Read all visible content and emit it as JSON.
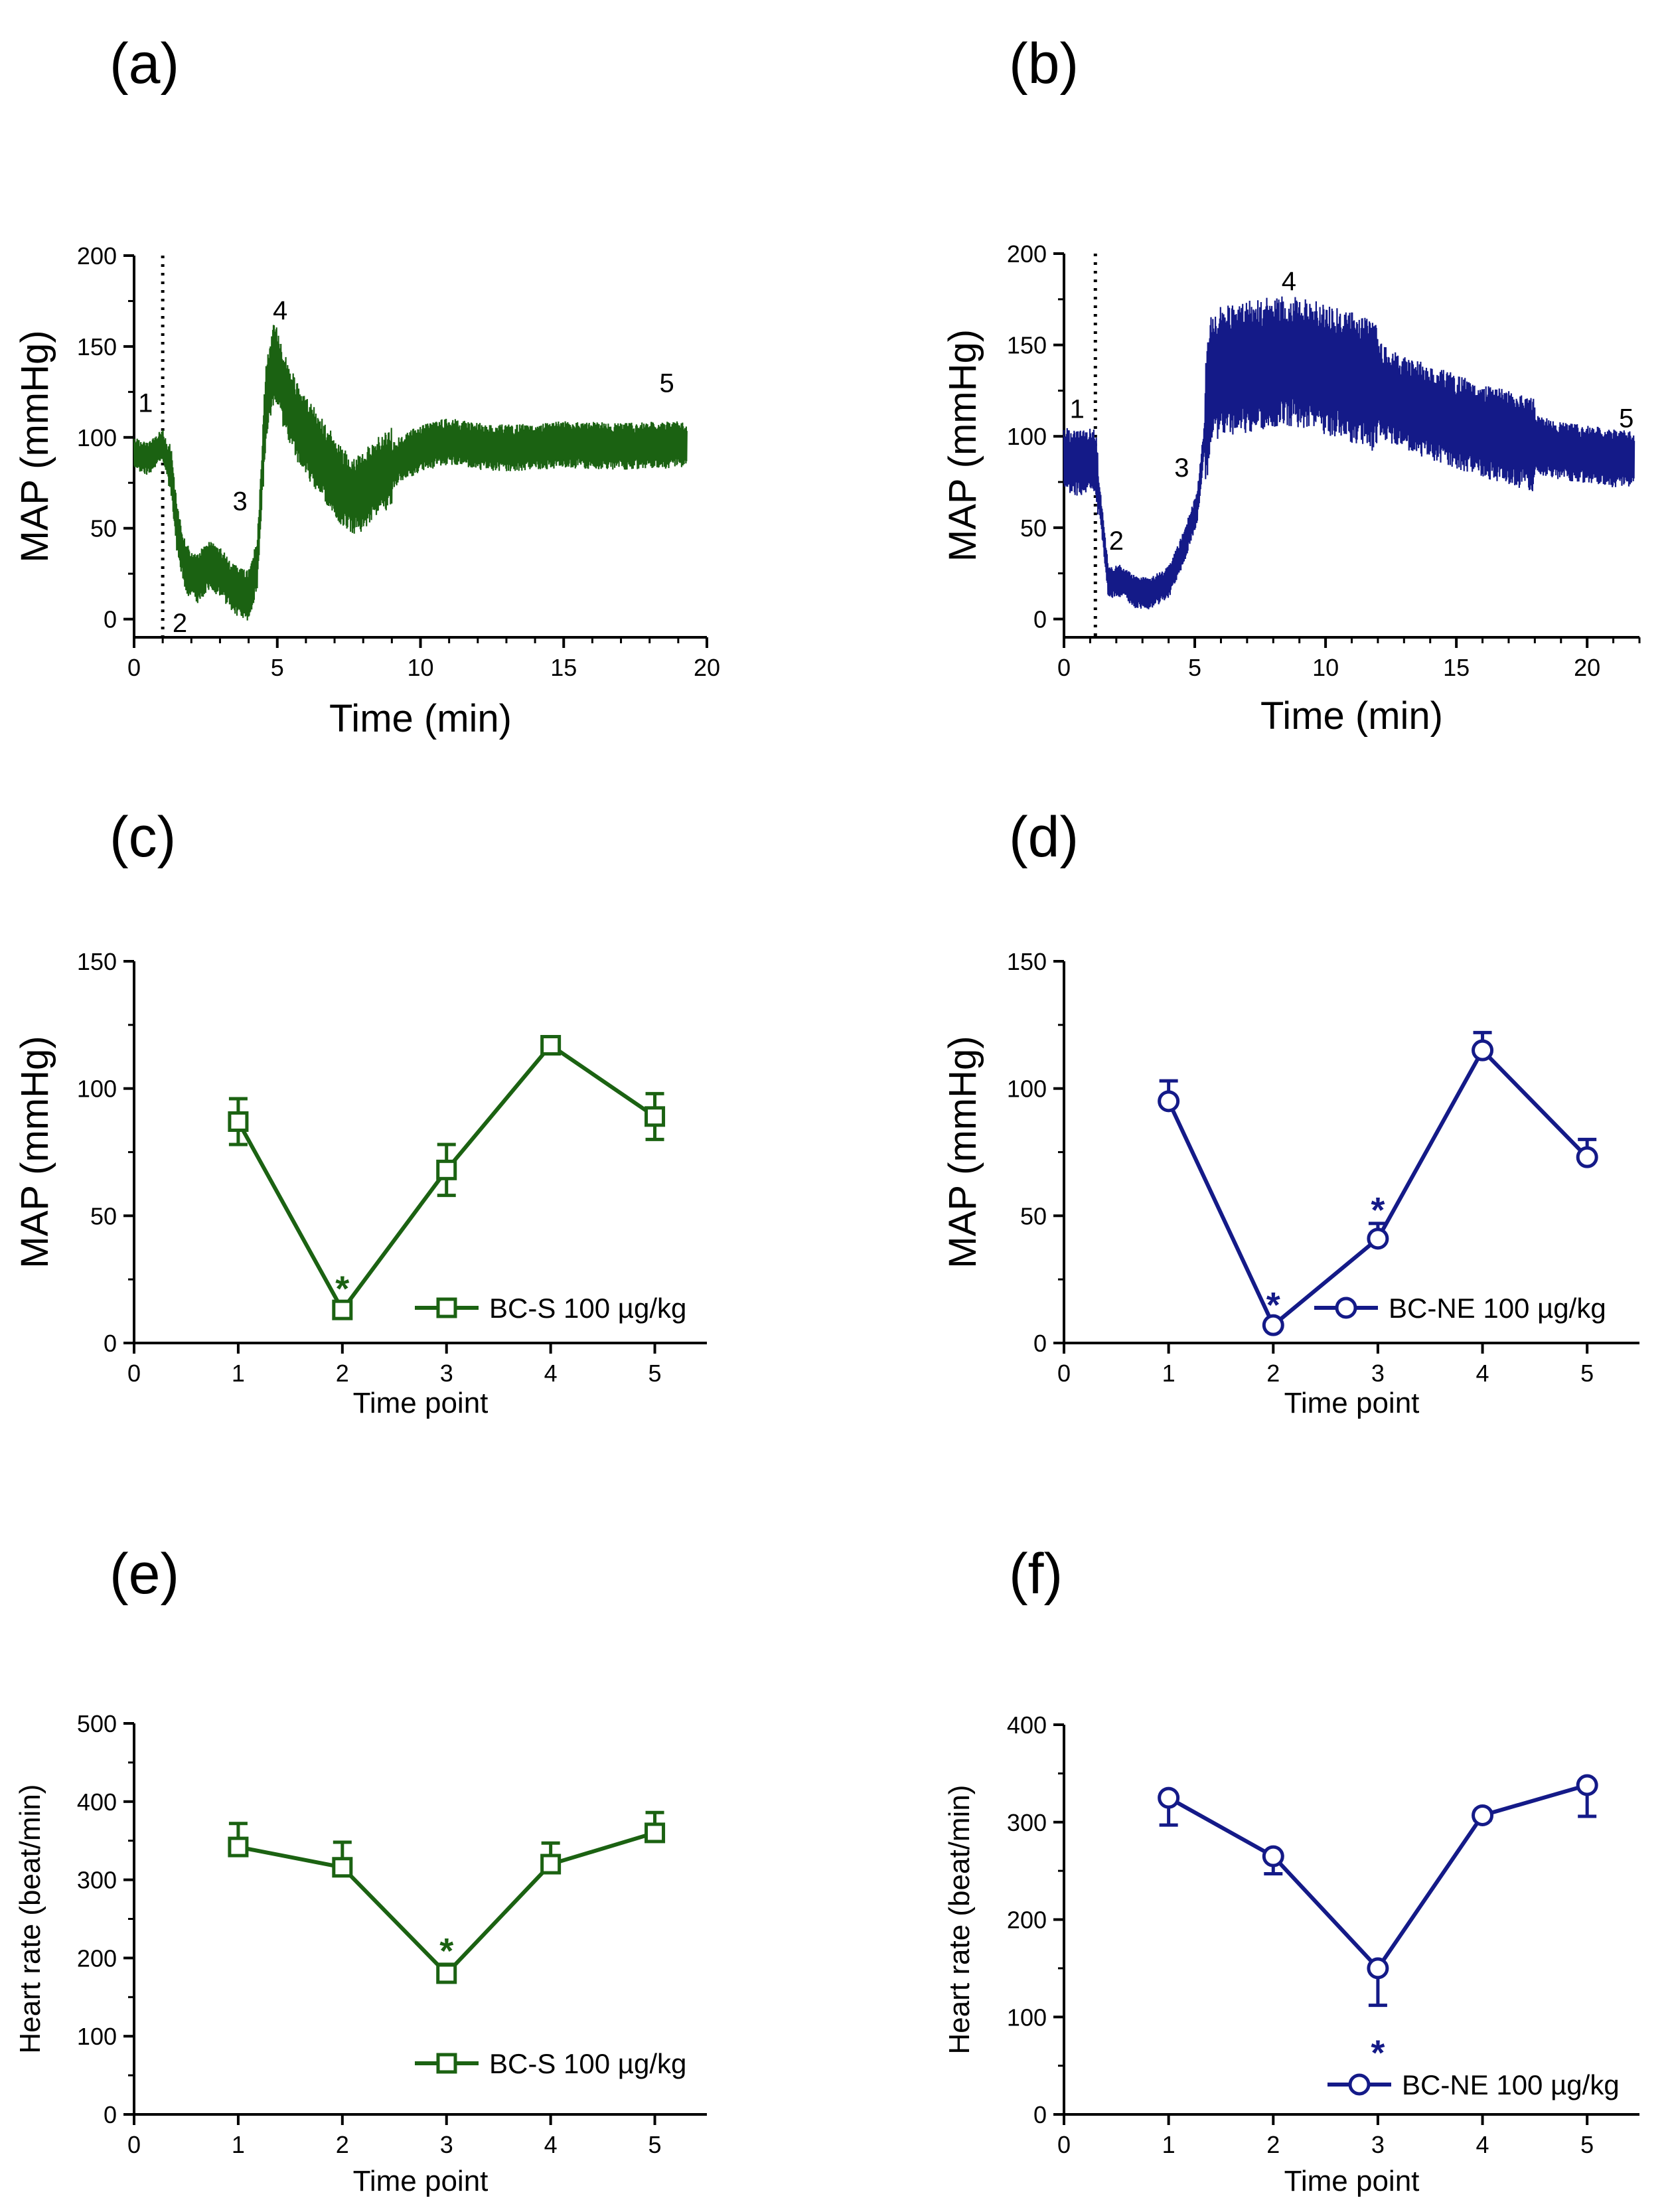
{
  "colors": {
    "green": "#1b6212",
    "blue": "#141a88",
    "axis": "#000000"
  },
  "chart_data": [
    {
      "id": "a",
      "panel_label": "(a)",
      "type": "line",
      "color": "green",
      "title": "",
      "xlabel": "Time (min)",
      "ylabel": "MAP (mmHg)",
      "xlim": [
        0,
        20
      ],
      "ylim": [
        -10,
        200
      ],
      "xticks": [
        "0",
        "5",
        "10",
        "15",
        "20"
      ],
      "yticks": [
        "0",
        "50",
        "100",
        "150",
        "200"
      ],
      "injection_line_x": 1.0,
      "trace": [
        [
          0,
          91
        ],
        [
          0.5,
          88
        ],
        [
          1.0,
          96
        ],
        [
          1.3,
          80
        ],
        [
          1.5,
          50
        ],
        [
          1.8,
          28
        ],
        [
          2.2,
          22
        ],
        [
          2.6,
          30
        ],
        [
          3.0,
          26
        ],
        [
          3.5,
          16
        ],
        [
          4.0,
          13
        ],
        [
          4.3,
          30
        ],
        [
          4.6,
          118
        ],
        [
          4.9,
          143
        ],
        [
          5.3,
          122
        ],
        [
          5.8,
          105
        ],
        [
          6.5,
          90
        ],
        [
          7.3,
          72
        ],
        [
          7.8,
          68
        ],
        [
          8.5,
          78
        ],
        [
          9.3,
          88
        ],
        [
          10.0,
          94
        ],
        [
          11.0,
          98
        ],
        [
          12.0,
          95
        ],
        [
          13.0,
          94
        ],
        [
          15.0,
          96
        ],
        [
          17.0,
          95
        ],
        [
          19.0,
          96
        ],
        [
          19.3,
          95
        ]
      ],
      "points": [
        {
          "label": "1",
          "x": 0.4,
          "y": 114
        },
        {
          "label": "2",
          "x": 1.6,
          "y": -7
        },
        {
          "label": "3",
          "x": 3.7,
          "y": 60
        },
        {
          "label": "4",
          "x": 5.1,
          "y": 165
        },
        {
          "label": "5",
          "x": 18.6,
          "y": 125
        }
      ]
    },
    {
      "id": "b",
      "panel_label": "(b)",
      "type": "line",
      "color": "blue",
      "title": "",
      "xlabel": "Time (min)",
      "ylabel": "MAP (mmHg)",
      "xlim": [
        0,
        22
      ],
      "ylim": [
        -10,
        200
      ],
      "xticks": [
        "0",
        "5",
        "10",
        "15",
        "20"
      ],
      "yticks": [
        "0",
        "50",
        "100",
        "150",
        "200"
      ],
      "injection_line_x": 1.2,
      "trace": [
        [
          0,
          87
        ],
        [
          0.6,
          85
        ],
        [
          1.2,
          87
        ],
        [
          1.4,
          60
        ],
        [
          1.7,
          20
        ],
        [
          2.2,
          21
        ],
        [
          2.7,
          15
        ],
        [
          3.3,
          14
        ],
        [
          4.0,
          20
        ],
        [
          4.6,
          40
        ],
        [
          5.1,
          62
        ],
        [
          5.6,
          130
        ],
        [
          6.0,
          135
        ],
        [
          7.0,
          138
        ],
        [
          8.5,
          142
        ],
        [
          10.0,
          137
        ],
        [
          11.5,
          130
        ],
        [
          13.0,
          118
        ],
        [
          15.0,
          108
        ],
        [
          17.0,
          99
        ],
        [
          19.0,
          92
        ],
        [
          21.0,
          88
        ],
        [
          21.8,
          87
        ]
      ],
      "points": [
        {
          "label": "1",
          "x": 0.5,
          "y": 110
        },
        {
          "label": "2",
          "x": 2.0,
          "y": 38
        },
        {
          "label": "3",
          "x": 4.5,
          "y": 78
        },
        {
          "label": "4",
          "x": 8.6,
          "y": 180
        },
        {
          "label": "5",
          "x": 21.5,
          "y": 105
        }
      ]
    },
    {
      "id": "c",
      "panel_label": "(c)",
      "type": "line",
      "color": "green",
      "marker": "square",
      "title": "",
      "xlabel": "Time point",
      "ylabel": "MAP (mmHg)",
      "xlim": [
        0,
        5.5
      ],
      "ylim": [
        0,
        150
      ],
      "xticks": [
        "0",
        "1",
        "2",
        "3",
        "4",
        "5"
      ],
      "yticks": [
        "0",
        "50",
        "100",
        "150"
      ],
      "legend": "BC-S 100 µg/kg",
      "series": [
        {
          "name": "BC-S 100 µg/kg",
          "x": [
            1,
            2,
            3,
            4,
            5
          ],
          "values": [
            87,
            13,
            68,
            117,
            89
          ],
          "error": [
            9,
            3,
            10,
            2,
            9
          ],
          "error_dir": "both"
        }
      ],
      "significance": [
        {
          "x": 2,
          "side": "above"
        }
      ]
    },
    {
      "id": "d",
      "panel_label": "(d)",
      "type": "line",
      "color": "blue",
      "marker": "circle",
      "title": "",
      "xlabel": "Time point",
      "ylabel": "MAP (mmHg)",
      "xlim": [
        0,
        5.5
      ],
      "ylim": [
        0,
        150
      ],
      "xticks": [
        "0",
        "1",
        "2",
        "3",
        "4",
        "5"
      ],
      "yticks": [
        "0",
        "50",
        "100",
        "150"
      ],
      "legend": "BC-NE 100 µg/kg",
      "series": [
        {
          "name": "BC-NE 100 µg/kg",
          "x": [
            1,
            2,
            3,
            4,
            5
          ],
          "values": [
            95,
            7,
            41,
            115,
            73
          ],
          "error": [
            8,
            0,
            6,
            7,
            7
          ],
          "error_dir": "up"
        }
      ],
      "significance": [
        {
          "x": 2,
          "side": "above"
        },
        {
          "x": 3,
          "side": "above"
        }
      ]
    },
    {
      "id": "e",
      "panel_label": "(e)",
      "type": "line",
      "color": "green",
      "marker": "square",
      "title": "",
      "xlabel": "Time point",
      "ylabel": "Heart rate (beat/min)",
      "xlim": [
        0,
        5.5
      ],
      "ylim": [
        0,
        500
      ],
      "xticks": [
        "0",
        "1",
        "2",
        "3",
        "4",
        "5"
      ],
      "yticks": [
        "0",
        "100",
        "200",
        "300",
        "400",
        "500"
      ],
      "legend": "BC-S 100 µg/kg",
      "series": [
        {
          "name": "BC-S 100 µg/kg",
          "x": [
            1,
            2,
            3,
            4,
            5
          ],
          "values": [
            342,
            316,
            180,
            320,
            360
          ],
          "error": [
            30,
            32,
            12,
            27,
            26
          ],
          "error_dir": "up"
        }
      ],
      "significance": [
        {
          "x": 3,
          "side": "above"
        }
      ]
    },
    {
      "id": "f",
      "panel_label": "(f)",
      "type": "line",
      "color": "blue",
      "marker": "circle",
      "title": "",
      "xlabel": "Time point",
      "ylabel": "Heart rate (beat/min)",
      "xlim": [
        0,
        5.5
      ],
      "ylim": [
        0,
        400
      ],
      "xticks": [
        "0",
        "1",
        "2",
        "3",
        "4",
        "5"
      ],
      "yticks": [
        "0",
        "100",
        "200",
        "300",
        "400"
      ],
      "legend": "BC-NE 100 µg/kg",
      "series": [
        {
          "name": "BC-NE 100 µg/kg",
          "x": [
            1,
            2,
            3,
            4,
            5
          ],
          "values": [
            325,
            265,
            150,
            307,
            338
          ],
          "error": [
            28,
            18,
            38,
            5,
            32
          ],
          "error_dir": "down"
        }
      ],
      "significance": [
        {
          "x": 3,
          "side": "below"
        }
      ]
    }
  ]
}
